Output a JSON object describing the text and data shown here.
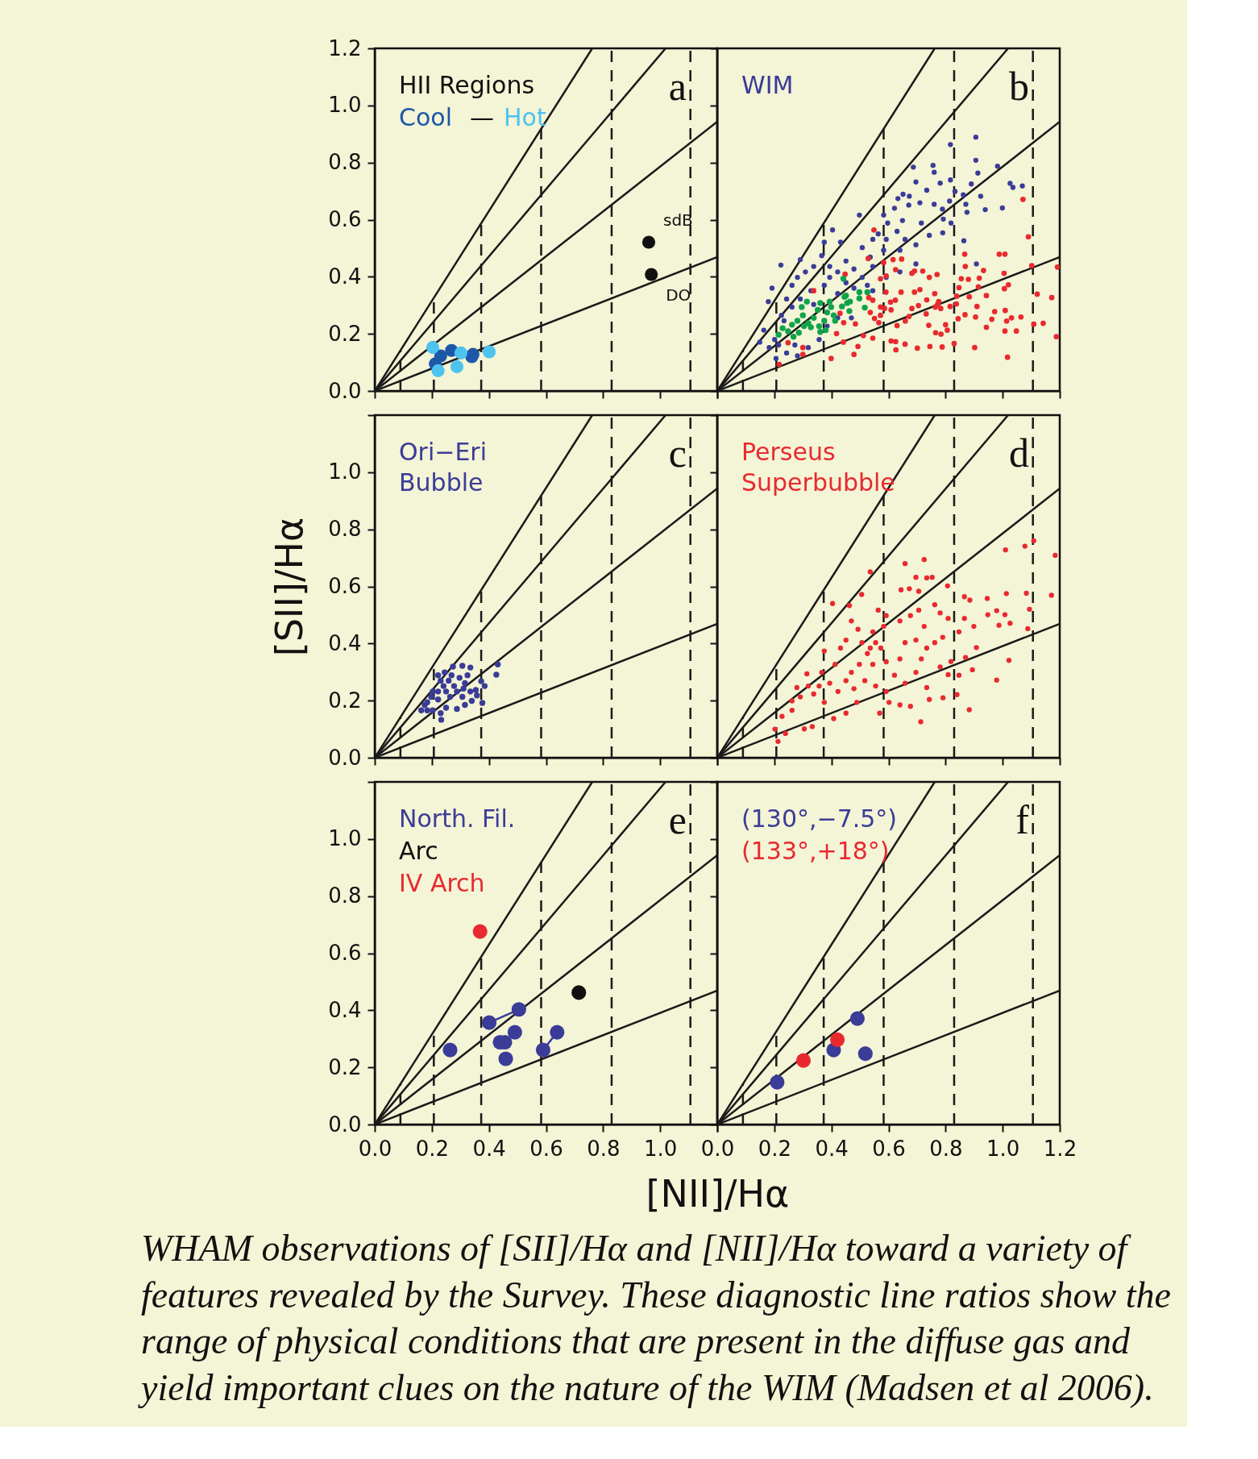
{
  "chart_data": [
    {
      "type": "scatter",
      "title": "a",
      "legend_title": "HII Regions",
      "tick_labels": "y",
      "xlim": [
        0,
        1.2
      ],
      "ylim": [
        0,
        1.2
      ],
      "xticks": [
        0,
        0.2,
        0.4,
        0.6,
        0.8,
        1,
        1.2
      ],
      "yticks": [
        {
          "value": 0,
          "label": "0.0"
        },
        0.2,
        0.4,
        0.6,
        0.8,
        {
          "value": 1,
          "label": "1.0"
        },
        1.2
      ],
      "annotations": [
        "—",
        {
          "text": "sdB",
          "x": 0.96,
          "y": 0.521
        },
        {
          "text": "DO",
          "x": 0.969,
          "y": 0.408
        }
      ],
      "series": [
        {
          "type": "line",
          "color": "#1a1a1a",
          "x": [
            0,
            0.762
          ],
          "values": [
            0,
            1.2
          ]
        },
        {
          "type": "line",
          "color": "#1a1a1a",
          "x": [
            0,
            1.019
          ],
          "values": [
            0,
            1.2
          ]
        },
        {
          "type": "line",
          "color": "#1a1a1a",
          "x": [
            0,
            1.2
          ],
          "values": [
            0,
            0.943
          ]
        },
        {
          "type": "line",
          "color": "#1a1a1a",
          "x": [
            0,
            1.2
          ],
          "values": [
            0,
            0.469
          ]
        },
        {
          "type": "line",
          "color": "#1a1a1a",
          "line_style": "dashed",
          "x": [
            0.09,
            0.09
          ],
          "values": [
            0,
            0.142
          ]
        },
        {
          "type": "line",
          "color": "#1a1a1a",
          "line_style": "dashed",
          "x": [
            0.207,
            0.207
          ],
          "values": [
            0,
            0.327
          ]
        },
        {
          "type": "line",
          "color": "#1a1a1a",
          "line_style": "dashed",
          "x": [
            0.373,
            0.373
          ],
          "values": [
            0,
            0.587
          ]
        },
        {
          "type": "line",
          "color": "#1a1a1a",
          "line_style": "dashed",
          "x": [
            0.583,
            0.583
          ],
          "values": [
            0,
            0.918
          ]
        },
        {
          "type": "line",
          "color": "#1a1a1a",
          "line_style": "dashed",
          "x": [
            0.83,
            0.83
          ],
          "values": [
            0,
            1.2
          ]
        },
        {
          "type": "line",
          "color": "#1a1a1a",
          "line_style": "dashed",
          "x": [
            1.106,
            1.106
          ],
          "values": [
            0,
            1.2
          ]
        },
        {
          "name": "Cool",
          "marker": "circle",
          "color": "#1d58a8",
          "x": [
            0.212,
            0.269,
            0.344,
            0.231,
            0.34
          ],
          "values": [
            0.095,
            0.142,
            0.128,
            0.123,
            0.12
          ]
        },
        {
          "name": "Hot",
          "marker": "circle",
          "color": "#4dc3ef",
          "x": [
            0.203,
            0.222,
            0.288,
            0.302,
            0.401
          ],
          "values": [
            0.152,
            0.071,
            0.085,
            0.133,
            0.137
          ]
        },
        {
          "marker": "circle",
          "color": "#111111",
          "x": [
            0.96,
            0.969
          ],
          "values": [
            0.521,
            0.408
          ]
        }
      ]
    },
    {
      "type": "scatter",
      "title": "b",
      "tick_labels": false,
      "xlim": [
        0,
        1.2
      ],
      "ylim": [
        0,
        1.2
      ],
      "xticks": [
        0,
        0.2,
        0.4,
        0.6,
        0.8,
        1,
        1.2
      ],
      "yticks": [
        0,
        0.2,
        0.4,
        0.6,
        0.8,
        1,
        1.2
      ],
      "series": [
        {
          "type": "line",
          "color": "#1a1a1a",
          "x": [
            0,
            0.762
          ],
          "values": [
            0,
            1.2
          ]
        },
        {
          "type": "line",
          "color": "#1a1a1a",
          "x": [
            0,
            1.019
          ],
          "values": [
            0,
            1.2
          ]
        },
        {
          "type": "line",
          "color": "#1a1a1a",
          "x": [
            0,
            1.2
          ],
          "values": [
            0,
            0.943
          ]
        },
        {
          "type": "line",
          "color": "#1a1a1a",
          "x": [
            0,
            1.2
          ],
          "values": [
            0,
            0.469
          ]
        },
        {
          "type": "line",
          "color": "#1a1a1a",
          "line_style": "dashed",
          "x": [
            0.09,
            0.09
          ],
          "values": [
            0,
            0.142
          ]
        },
        {
          "type": "line",
          "color": "#1a1a1a",
          "line_style": "dashed",
          "x": [
            0.207,
            0.207
          ],
          "values": [
            0,
            0.327
          ]
        },
        {
          "type": "line",
          "color": "#1a1a1a",
          "line_style": "dashed",
          "x": [
            0.373,
            0.373
          ],
          "values": [
            0,
            0.587
          ]
        },
        {
          "type": "line",
          "color": "#1a1a1a",
          "line_style": "dashed",
          "x": [
            0.583,
            0.583
          ],
          "values": [
            0,
            0.918
          ]
        },
        {
          "type": "line",
          "color": "#1a1a1a",
          "line_style": "dashed",
          "x": [
            0.83,
            0.83
          ],
          "values": [
            0,
            1.2
          ]
        },
        {
          "type": "line",
          "color": "#1a1a1a",
          "line_style": "dashed",
          "x": [
            1.106,
            1.106
          ],
          "values": [
            0,
            1.2
          ]
        },
        {
          "name": "WIM",
          "marker": "circle",
          "color": "#3a3c98",
          "x": [
            0.906,
            0.817,
            0.906,
            0.913,
            0.982,
            1.026,
            1.069,
            1.036,
            0.923,
            0.939,
            0.89,
            0.833,
            0.862,
            0.871,
            0.875,
            0.999,
            0.864,
            0.908,
            0.817,
            0.756,
            0.76,
            0.781,
            0.687,
            0.696,
            0.651,
            0.673,
            0.734,
            0.76,
            0.71,
            0.789,
            0.814,
            0.792,
            0.819,
            0.79,
            0.743,
            0.715,
            0.671,
            0.633,
            0.621,
            0.583,
            0.649,
            0.63,
            0.597,
            0.564,
            0.545,
            0.508,
            0.498,
            0.536,
            0.583,
            0.64,
            0.696,
            0.696,
            0.432,
            0.404,
            0.375,
            0.291,
            0.223,
            0.192,
            0.179,
            0.149,
            0.163,
            0.182,
            0.206,
            0.201,
            0.225,
            0.243,
            0.262,
            0.281,
            0.309,
            0.338,
            0.366,
            0.394,
            0.422,
            0.451,
            0.479,
            0.508,
            0.545,
            0.526,
            0.479,
            0.422,
            0.375,
            0.328,
            0.291,
            0.262,
            0.234,
            0.215,
            0.243,
            0.281,
            0.272,
            0.319,
            0.357,
            0.385,
            0.422,
            0.47,
            0.545,
            0.592,
            0.64,
            0.592,
            0.658,
            0.451,
            0.394,
            0.338
          ],
          "values": [
            0.889,
            0.863,
            0.808,
            0.763,
            0.787,
            0.727,
            0.718,
            0.713,
            0.682,
            0.635,
            0.725,
            0.699,
            0.687,
            0.654,
            0.626,
            0.641,
            0.526,
            0.445,
            0.739,
            0.79,
            0.766,
            0.728,
            0.784,
            0.732,
            0.689,
            0.682,
            0.703,
            0.654,
            0.659,
            0.637,
            0.665,
            0.602,
            0.588,
            0.554,
            0.545,
            0.588,
            0.651,
            0.674,
            0.64,
            0.616,
            0.597,
            0.559,
            0.588,
            0.55,
            0.531,
            0.502,
            0.616,
            0.469,
            0.493,
            0.493,
            0.512,
            0.445,
            0.521,
            0.564,
            0.521,
            0.46,
            0.441,
            0.36,
            0.313,
            0.171,
            0.213,
            0.152,
            0.114,
            0.18,
            0.265,
            0.322,
            0.37,
            0.398,
            0.417,
            0.436,
            0.474,
            0.436,
            0.417,
            0.455,
            0.427,
            0.398,
            0.436,
            0.37,
            0.36,
            0.341,
            0.37,
            0.351,
            0.322,
            0.294,
            0.246,
            0.161,
            0.133,
            0.123,
            0.161,
            0.152,
            0.18,
            0.227,
            0.256,
            0.256,
            0.351,
            0.398,
            0.417,
            0.531,
            0.531,
            0.379,
            0.398,
            0.303
          ]
        },
        {
          "marker": "circle",
          "color": "#e82a2f",
          "x": [
            1.071,
            1.09,
            1.102,
            1.192,
            1.188,
            1.172,
            1.121,
            1.142,
            1.109,
            1.017,
            1.048,
            1.008,
            1.064,
            1.031,
            1.014,
            0.972,
            1.009,
            1.02,
            1.006,
            1.005,
            0.988,
            1.008,
            0.933,
            0.918,
            0.915,
            0.943,
            0.91,
            0.905,
            0.962,
            0.943,
            0.902,
            0.868,
            0.883,
            0.844,
            0.867,
            0.869,
            0.88,
            0.855,
            0.847,
            0.839,
            0.838,
            0.83,
            0.816,
            0.806,
            0.8,
            0.784,
            0.765,
            0.788,
            0.745,
            0.701,
            0.658,
            0.626,
            0.625,
            0.609,
            0.63,
            0.659,
            0.672,
            0.682,
            0.705,
            0.732,
            0.741,
            0.734,
            0.764,
            0.772,
            0.776,
            0.762,
            0.783,
            0.77,
            0.743,
            0.72,
            0.691,
            0.682,
            0.71,
            0.691,
            0.644,
            0.624,
            0.607,
            0.609,
            0.591,
            0.586,
            0.572,
            0.572,
            0.566,
            0.551,
            0.536,
            0.545,
            0.531,
            0.512,
            0.545,
            0.493,
            0.479,
            0.484,
            0.443,
            0.43,
            0.442,
            0.418,
            0.399,
            0.592,
            0.583,
            0.572,
            0.616,
            0.646,
            0.625,
            0.529,
            0.549,
            0.448,
            0.338,
            0.3,
            0.3,
            0.248,
            0.217
          ],
          "values": [
            0.671,
            0.54,
            0.439,
            0.434,
            0.19,
            0.327,
            0.339,
            0.237,
            0.234,
            0.118,
            0.21,
            0.21,
            0.259,
            0.256,
            0.245,
            0.278,
            0.282,
            0.372,
            0.358,
            0.412,
            0.479,
            0.479,
            0.422,
            0.395,
            0.365,
            0.334,
            0.296,
            0.259,
            0.251,
            0.223,
            0.152,
            0.267,
            0.33,
            0.253,
            0.479,
            0.436,
            0.391,
            0.393,
            0.362,
            0.332,
            0.305,
            0.166,
            0.296,
            0.213,
            0.232,
            0.199,
            0.204,
            0.154,
            0.156,
            0.15,
            0.164,
            0.144,
            0.173,
            0.175,
            0.229,
            0.245,
            0.261,
            0.289,
            0.299,
            0.27,
            0.23,
            0.319,
            0.294,
            0.303,
            0.313,
            0.341,
            0.289,
            0.408,
            0.398,
            0.42,
            0.42,
            0.412,
            0.355,
            0.346,
            0.346,
            0.318,
            0.311,
            0.284,
            0.346,
            0.289,
            0.294,
            0.265,
            0.239,
            0.254,
            0.275,
            0.318,
            0.327,
            0.194,
            0.185,
            0.156,
            0.128,
            0.235,
            0.239,
            0.272,
            0.171,
            0.201,
            0.114,
            0.403,
            0.45,
            0.393,
            0.46,
            0.462,
            0.425,
            0.464,
            0.564,
            0.409,
            0.351,
            0.152,
            0.128,
            0.169,
            0.093
          ]
        },
        {
          "marker": "circle",
          "color": "#10a34a",
          "x": [
            0.442,
            0.526,
            0.498,
            0.498,
            0.517,
            0.463,
            0.451,
            0.437,
            0.455,
            0.215,
            0.229,
            0.248,
            0.267,
            0.286,
            0.262,
            0.281,
            0.3,
            0.296,
            0.314,
            0.319,
            0.338,
            0.352,
            0.361,
            0.357,
            0.375,
            0.385,
            0.394,
            0.399,
            0.408,
            0.413,
            0.38,
            0.361,
            0.328,
            0.304,
            0.465,
            0.446
          ],
          "values": [
            0.393,
            0.346,
            0.346,
            0.324,
            0.292,
            0.28,
            0.334,
            0.296,
            0.308,
            0.197,
            0.22,
            0.209,
            0.19,
            0.204,
            0.232,
            0.246,
            0.265,
            0.294,
            0.313,
            0.237,
            0.256,
            0.284,
            0.308,
            0.227,
            0.246,
            0.275,
            0.313,
            0.294,
            0.265,
            0.246,
            0.213,
            0.207,
            0.223,
            0.227,
            0.313,
            0.33
          ]
        }
      ]
    },
    {
      "type": "scatter",
      "title": "c",
      "tick_labels": "y",
      "ylabel": "[SII]/Hα",
      "xlim": [
        0,
        1.2
      ],
      "ylim": [
        0,
        1.2
      ],
      "xticks": [
        0,
        0.2,
        0.4,
        0.6,
        0.8,
        1,
        1.2
      ],
      "yticks": [
        {
          "value": 0,
          "label": "0.0"
        },
        0.2,
        0.4,
        0.6,
        0.8,
        {
          "value": 1,
          "label": "1.0"
        },
        {
          "value": 1.2,
          "label": null
        }
      ],
      "series": [
        {
          "type": "line",
          "color": "#1a1a1a",
          "x": [
            0,
            0.762
          ],
          "values": [
            0,
            1.2
          ]
        },
        {
          "type": "line",
          "color": "#1a1a1a",
          "x": [
            0,
            1.019
          ],
          "values": [
            0,
            1.2
          ]
        },
        {
          "type": "line",
          "color": "#1a1a1a",
          "x": [
            0,
            1.2
          ],
          "values": [
            0,
            0.943
          ]
        },
        {
          "type": "line",
          "color": "#1a1a1a",
          "x": [
            0,
            1.2
          ],
          "values": [
            0,
            0.469
          ]
        },
        {
          "type": "line",
          "color": "#1a1a1a",
          "line_style": "dashed",
          "x": [
            0.09,
            0.09
          ],
          "values": [
            0,
            0.142
          ]
        },
        {
          "type": "line",
          "color": "#1a1a1a",
          "line_style": "dashed",
          "x": [
            0.207,
            0.207
          ],
          "values": [
            0,
            0.327
          ]
        },
        {
          "type": "line",
          "color": "#1a1a1a",
          "line_style": "dashed",
          "x": [
            0.373,
            0.373
          ],
          "values": [
            0,
            0.587
          ]
        },
        {
          "type": "line",
          "color": "#1a1a1a",
          "line_style": "dashed",
          "x": [
            0.583,
            0.583
          ],
          "values": [
            0,
            0.918
          ]
        },
        {
          "type": "line",
          "color": "#1a1a1a",
          "line_style": "dashed",
          "x": [
            0.83,
            0.83
          ],
          "values": [
            0,
            1.2
          ]
        },
        {
          "type": "line",
          "color": "#1a1a1a",
          "line_style": "dashed",
          "x": [
            1.106,
            1.106
          ],
          "values": [
            0,
            1.2
          ]
        },
        {
          "name": "Ori−Eri\nBubble",
          "marker": "circle",
          "color": "#3a3c98",
          "x": [
            0.163,
            0.184,
            0.198,
            0.222,
            0.241,
            0.259,
            0.274,
            0.307,
            0.335,
            0.245,
            0.231,
            0.269,
            0.297,
            0.316,
            0.335,
            0.354,
            0.373,
            0.385,
            0.426,
            0.431,
            0.377,
            0.34,
            0.316,
            0.288,
            0.233,
            0.231,
            0.203,
            0.184,
            0.175,
            0.264,
            0.288,
            0.307,
            0.25,
            0.222,
            0.203,
            0.25,
            0.278,
            0.311,
            0.358,
            0.325,
            0.222
          ],
          "values": [
            0.166,
            0.194,
            0.213,
            0.232,
            0.251,
            0.27,
            0.319,
            0.322,
            0.316,
            0.299,
            0.27,
            0.289,
            0.28,
            0.261,
            0.232,
            0.237,
            0.268,
            0.251,
            0.291,
            0.327,
            0.192,
            0.199,
            0.185,
            0.171,
            0.133,
            0.156,
            0.166,
            0.166,
            0.185,
            0.213,
            0.232,
            0.213,
            0.232,
            0.204,
            0.232,
            0.175,
            0.251,
            0.242,
            0.218,
            0.289,
            0.289
          ]
        }
      ]
    },
    {
      "type": "scatter",
      "title": "d",
      "tick_labels": false,
      "xlim": [
        0,
        1.2
      ],
      "ylim": [
        0,
        1.2
      ],
      "xticks": [
        0,
        0.2,
        0.4,
        0.6,
        0.8,
        1,
        1.2
      ],
      "yticks": [
        0,
        0.2,
        0.4,
        0.6,
        0.8,
        1,
        1.2
      ],
      "series": [
        {
          "type": "line",
          "color": "#1a1a1a",
          "x": [
            0,
            0.762
          ],
          "values": [
            0,
            1.2
          ]
        },
        {
          "type": "line",
          "color": "#1a1a1a",
          "x": [
            0,
            1.019
          ],
          "values": [
            0,
            1.2
          ]
        },
        {
          "type": "line",
          "color": "#1a1a1a",
          "x": [
            0,
            1.2
          ],
          "values": [
            0,
            0.943
          ]
        },
        {
          "type": "line",
          "color": "#1a1a1a",
          "x": [
            0,
            1.2
          ],
          "values": [
            0,
            0.469
          ]
        },
        {
          "type": "line",
          "color": "#1a1a1a",
          "line_style": "dashed",
          "x": [
            0.09,
            0.09
          ],
          "values": [
            0,
            0.142
          ]
        },
        {
          "type": "line",
          "color": "#1a1a1a",
          "line_style": "dashed",
          "x": [
            0.207,
            0.207
          ],
          "values": [
            0,
            0.327
          ]
        },
        {
          "type": "line",
          "color": "#1a1a1a",
          "line_style": "dashed",
          "x": [
            0.373,
            0.373
          ],
          "values": [
            0,
            0.587
          ]
        },
        {
          "type": "line",
          "color": "#1a1a1a",
          "line_style": "dashed",
          "x": [
            0.583,
            0.583
          ],
          "values": [
            0,
            0.918
          ]
        },
        {
          "type": "line",
          "color": "#1a1a1a",
          "line_style": "dashed",
          "x": [
            0.83,
            0.83
          ],
          "values": [
            0,
            1.2
          ]
        },
        {
          "type": "line",
          "color": "#1a1a1a",
          "line_style": "dashed",
          "x": [
            1.106,
            1.106
          ],
          "values": [
            0,
            1.2
          ]
        },
        {
          "name": "Perseus\nSuperbubble",
          "marker": "circle",
          "color": "#e82a2f",
          "x": [
            1.109,
            1.078,
            1.01,
            1.184,
            1.171,
            1.083,
            1.013,
            0.946,
            1.094,
            1.026,
            1.088,
            0.987,
            0.979,
            1.008,
            0.948,
            1.022,
            0.979,
            0.883,
            0.713,
            0.536,
            0.658,
            0.725,
            0.696,
            0.734,
            0.753,
            0.807,
            0.506,
            0.404,
            0.463,
            0.866,
            0.885,
            0.899,
            0.866,
            0.847,
            0.908,
            0.894,
            0.87,
            0.84,
            0.809,
            0.791,
            0.743,
            0.677,
            0.64,
            0.569,
            0.451,
            0.408,
            0.333,
            0.305,
            0.239,
            0.213,
            0.202,
            0.227,
            0.262,
            0.279,
            0.262,
            0.291,
            0.319,
            0.338,
            0.314,
            0.366,
            0.375,
            0.394,
            0.413,
            0.432,
            0.451,
            0.47,
            0.493,
            0.507,
            0.536,
            0.545,
            0.564,
            0.592,
            0.583,
            0.573,
            0.592,
            0.545,
            0.498,
            0.47,
            0.451,
            0.423,
            0.479,
            0.517,
            0.555,
            0.592,
            0.621,
            0.64,
            0.658,
            0.64,
            0.677,
            0.706,
            0.725,
            0.696,
            0.734,
            0.715,
            0.696,
            0.658,
            0.734,
            0.781,
            0.762,
            0.79,
            0.809,
            0.781,
            0.762,
            0.706,
            0.673,
            0.644,
            0.819,
            0.847,
            0.602,
            0.489,
            0.375,
            0.357,
            0.526,
            0.555
          ],
          "values": [
            0.76,
            0.741,
            0.728,
            0.709,
            0.569,
            0.576,
            0.575,
            0.558,
            0.52,
            0.471,
            0.452,
            0.464,
            0.515,
            0.501,
            0.501,
            0.341,
            0.272,
            0.168,
            0.126,
            0.651,
            0.68,
            0.694,
            0.632,
            0.63,
            0.632,
            0.602,
            0.572,
            0.54,
            0.533,
            0.564,
            0.552,
            0.46,
            0.488,
            0.441,
            0.386,
            0.308,
            0.351,
            0.221,
            0.291,
            0.21,
            0.204,
            0.18,
            0.185,
            0.156,
            0.156,
            0.137,
            0.109,
            0.101,
            0.085,
            0.057,
            0.1,
            0.145,
            0.166,
            0.246,
            0.199,
            0.213,
            0.251,
            0.223,
            0.294,
            0.299,
            0.374,
            0.261,
            0.327,
            0.384,
            0.412,
            0.479,
            0.45,
            0.403,
            0.384,
            0.441,
            0.517,
            0.498,
            0.46,
            0.384,
            0.336,
            0.327,
            0.327,
            0.299,
            0.27,
            0.232,
            0.242,
            0.27,
            0.251,
            0.232,
            0.289,
            0.346,
            0.403,
            0.479,
            0.498,
            0.517,
            0.46,
            0.412,
            0.384,
            0.346,
            0.299,
            0.261,
            0.246,
            0.318,
            0.403,
            0.422,
            0.488,
            0.507,
            0.536,
            0.583,
            0.592,
            0.588,
            0.337,
            0.289,
            0.194,
            0.194,
            0.194,
            0.251,
            0.365,
            0.403
          ]
        }
      ]
    },
    {
      "type": "scatter",
      "title": "e",
      "xlabel": "[NII]/Hα",
      "xlim": [
        0,
        1.2
      ],
      "ylim": [
        0,
        1.2
      ],
      "xticks": [
        {
          "value": 0,
          "label": "0.0"
        },
        0.2,
        0.4,
        0.6,
        0.8,
        {
          "value": 1,
          "label": "1.0"
        },
        {
          "value": 1.2,
          "label": null
        }
      ],
      "yticks": [
        {
          "value": 0,
          "label": "0.0"
        },
        0.2,
        0.4,
        0.6,
        0.8,
        {
          "value": 1,
          "label": "1.0"
        },
        {
          "value": 1.2,
          "label": null
        }
      ],
      "series": [
        {
          "type": "line",
          "color": "#1a1a1a",
          "x": [
            0,
            0.762
          ],
          "values": [
            0,
            1.2
          ]
        },
        {
          "type": "line",
          "color": "#1a1a1a",
          "x": [
            0,
            1.019
          ],
          "values": [
            0,
            1.2
          ]
        },
        {
          "type": "line",
          "color": "#1a1a1a",
          "x": [
            0,
            1.2
          ],
          "values": [
            0,
            0.943
          ]
        },
        {
          "type": "line",
          "color": "#1a1a1a",
          "x": [
            0,
            1.2
          ],
          "values": [
            0,
            0.469
          ]
        },
        {
          "type": "line",
          "color": "#1a1a1a",
          "line_style": "dashed",
          "x": [
            0.09,
            0.09
          ],
          "values": [
            0,
            0.142
          ]
        },
        {
          "type": "line",
          "color": "#1a1a1a",
          "line_style": "dashed",
          "x": [
            0.207,
            0.207
          ],
          "values": [
            0,
            0.327
          ]
        },
        {
          "type": "line",
          "color": "#1a1a1a",
          "line_style": "dashed",
          "x": [
            0.373,
            0.373
          ],
          "values": [
            0,
            0.587
          ]
        },
        {
          "type": "line",
          "color": "#1a1a1a",
          "line_style": "dashed",
          "x": [
            0.583,
            0.583
          ],
          "values": [
            0,
            0.918
          ]
        },
        {
          "type": "line",
          "color": "#1a1a1a",
          "line_style": "dashed",
          "x": [
            0.83,
            0.83
          ],
          "values": [
            0,
            1.2
          ]
        },
        {
          "type": "line",
          "color": "#1a1a1a",
          "line_style": "dashed",
          "x": [
            1.106,
            1.106
          ],
          "values": [
            0,
            1.2
          ]
        },
        {
          "type": "line",
          "color": "#3a3c98",
          "x": [
            0.401,
            0.505
          ],
          "values": [
            0.357,
            0.403
          ]
        },
        {
          "type": "line",
          "color": "#3a3c98",
          "x": [
            0.59,
            0.639
          ],
          "values": [
            0.261,
            0.323
          ]
        },
        {
          "name": "North. Fil.",
          "marker": "circle",
          "color": "#3a3c98",
          "x": [
            0.264,
            0.401,
            0.505,
            0.491,
            0.439,
            0.456,
            0.459,
            0.59,
            0.639
          ],
          "values": [
            0.261,
            0.357,
            0.403,
            0.323,
            0.288,
            0.288,
            0.23,
            0.261,
            0.323
          ]
        },
        {
          "name": "Arc",
          "marker": "circle",
          "color": "#111111",
          "x": [
            0.715
          ],
          "values": [
            0.462
          ]
        },
        {
          "name": "IV Arch",
          "marker": "circle",
          "color": "#e82a2f",
          "x": [
            0.369
          ],
          "values": [
            0.676
          ]
        }
      ]
    },
    {
      "type": "scatter",
      "title": "f",
      "tick_labels": "x",
      "xlim": [
        0,
        1.2
      ],
      "ylim": [
        0,
        1.2
      ],
      "xticks": [
        {
          "value": 0,
          "label": "0.0"
        },
        0.2,
        0.4,
        0.6,
        0.8,
        {
          "value": 1,
          "label": "1.0"
        },
        1.2
      ],
      "yticks": [
        0,
        0.2,
        0.4,
        0.6,
        0.8,
        1,
        1.2
      ],
      "series": [
        {
          "type": "line",
          "color": "#1a1a1a",
          "x": [
            0,
            0.762
          ],
          "values": [
            0,
            1.2
          ]
        },
        {
          "type": "line",
          "color": "#1a1a1a",
          "x": [
            0,
            1.019
          ],
          "values": [
            0,
            1.2
          ]
        },
        {
          "type": "line",
          "color": "#1a1a1a",
          "x": [
            0,
            1.2
          ],
          "values": [
            0,
            0.943
          ]
        },
        {
          "type": "line",
          "color": "#1a1a1a",
          "x": [
            0,
            1.2
          ],
          "values": [
            0,
            0.469
          ]
        },
        {
          "type": "line",
          "color": "#1a1a1a",
          "line_style": "dashed",
          "x": [
            0.09,
            0.09
          ],
          "values": [
            0,
            0.142
          ]
        },
        {
          "type": "line",
          "color": "#1a1a1a",
          "line_style": "dashed",
          "x": [
            0.207,
            0.207
          ],
          "values": [
            0,
            0.327
          ]
        },
        {
          "type": "line",
          "color": "#1a1a1a",
          "line_style": "dashed",
          "x": [
            0.373,
            0.373
          ],
          "values": [
            0,
            0.587
          ]
        },
        {
          "type": "line",
          "color": "#1a1a1a",
          "line_style": "dashed",
          "x": [
            0.583,
            0.583
          ],
          "values": [
            0,
            0.918
          ]
        },
        {
          "type": "line",
          "color": "#1a1a1a",
          "line_style": "dashed",
          "x": [
            0.83,
            0.83
          ],
          "values": [
            0,
            1.2
          ]
        },
        {
          "type": "line",
          "color": "#1a1a1a",
          "line_style": "dashed",
          "x": [
            1.106,
            1.106
          ],
          "values": [
            0,
            1.2
          ]
        },
        {
          "name": "(130°,−7.5°)",
          "marker": "circle",
          "color": "#3a3c98",
          "x": [
            0.21,
            0.408,
            0.491,
            0.519
          ],
          "values": [
            0.148,
            0.261,
            0.371,
            0.248
          ]
        },
        {
          "name": "(133°,+18°)",
          "marker": "circle",
          "color": "#e82a2f",
          "x": [
            0.302,
            0.421
          ],
          "values": [
            0.224,
            0.297
          ]
        }
      ]
    },
    {
      "type": "other",
      "annotations": [
        "WHAM observations of [SII]/Hα and [NII]/Hα toward a variety of features revealed by the Survey. These diagnostic line ratios show the range of physical conditions that are present in the diffuse gas and yield important clues on the nature of the WIM (Madsen et al 2006)."
      ]
    }
  ]
}
